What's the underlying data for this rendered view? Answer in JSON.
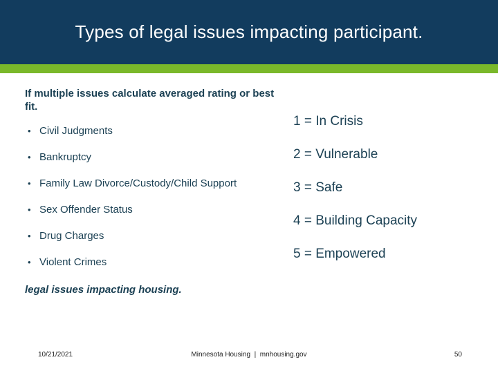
{
  "slide": {
    "title": "Types of legal issues impacting participant.",
    "intro": "If multiple issues calculate averaged rating or best fit.",
    "bullet_char": "•",
    "bullets": [
      "Civil Judgments",
      "Bankruptcy",
      "Family Law Divorce/Custody/Child Support",
      "Sex Offender Status",
      "Drug Charges",
      "Violent Crimes"
    ],
    "ratings": [
      "1 = In Crisis",
      "2 = Vulnerable",
      "3 = Safe",
      "4 = Building Capacity",
      "5 = Empowered"
    ],
    "note": "legal issues impacting housing.",
    "footer": {
      "date": "10/21/2021",
      "org": "Minnesota Housing  |  mnhousing.gov",
      "page": "50"
    },
    "colors": {
      "header_navy": "#123C5E",
      "accent_green": "#7AB82A",
      "text_navy": "#1C4154"
    }
  }
}
